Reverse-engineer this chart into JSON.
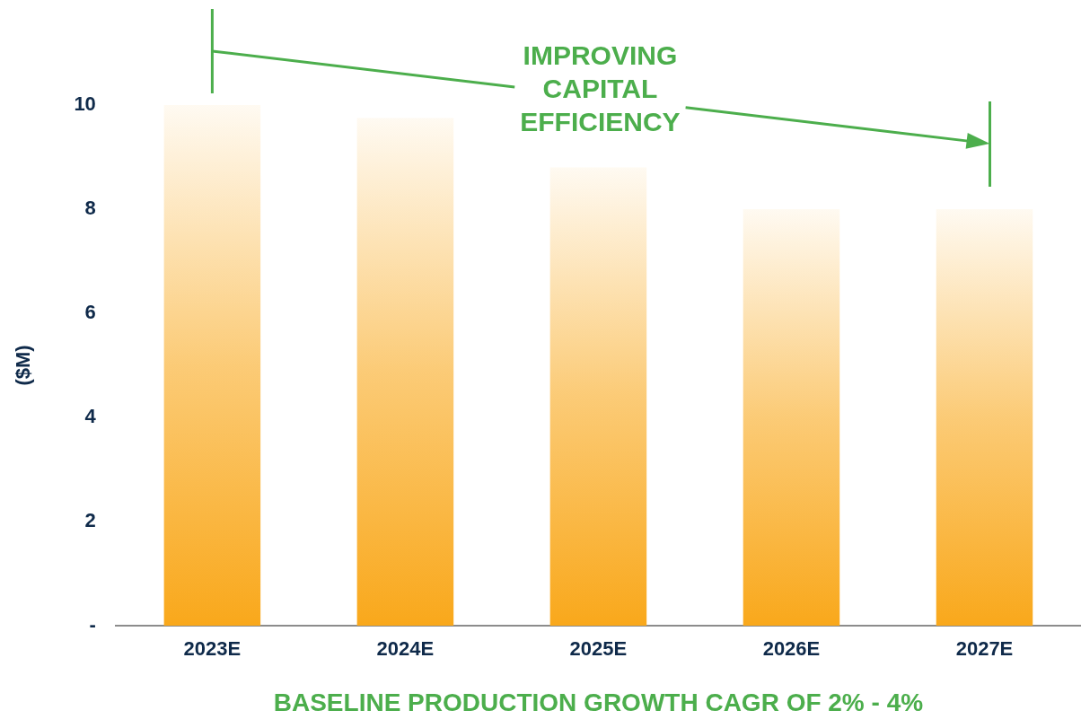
{
  "chart_data": {
    "type": "bar",
    "xlabel": "BASELINE PRODUCTION GROWTH CAGR OF 2% - 4%",
    "ylabel": "($M)",
    "categories": [
      "2023E",
      "2024E",
      "2025E",
      "2026E",
      "2027E"
    ],
    "values": [
      10.0,
      9.75,
      8.8,
      8.0,
      8.0
    ],
    "color": "#f9a81b",
    "ylim": [
      0,
      10
    ],
    "yticks": [
      {
        "value": 0,
        "label": "-"
      },
      2,
      4,
      6,
      8,
      10
    ],
    "grid": false,
    "legend": false,
    "annotations": [
      "IMPROVING CAPITAL EFFICIENCY"
    ]
  }
}
